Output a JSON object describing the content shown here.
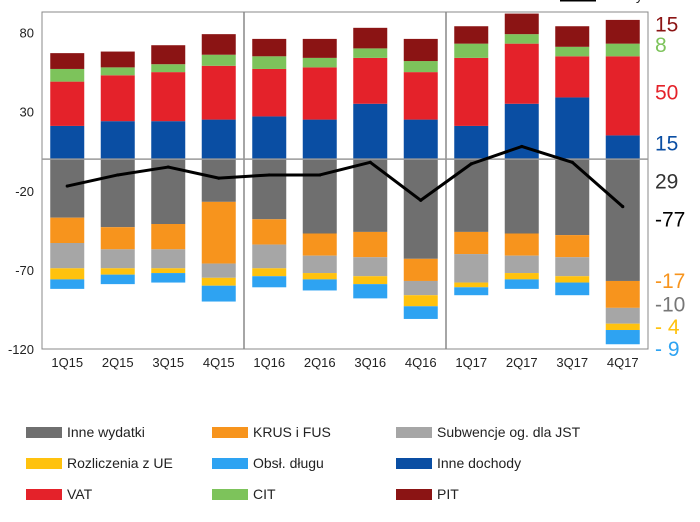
{
  "chart_data": {
    "type": "bar",
    "stacked": true,
    "categories": [
      "1Q15",
      "2Q15",
      "3Q15",
      "4Q15",
      "1Q16",
      "2Q16",
      "3Q16",
      "4Q16",
      "1Q17",
      "2Q17",
      "3Q17",
      "4Q17"
    ],
    "y_ticks": [
      "80",
      "30",
      "-20",
      "-70",
      "-120"
    ],
    "ylim": [
      -120,
      93
    ],
    "grid": false,
    "legend_position": "bottom",
    "positive_series": [
      {
        "name": "Inne dochody",
        "color": "#0a4ea3",
        "values": [
          21,
          24,
          24,
          25,
          27,
          25,
          35,
          25,
          21,
          35,
          39,
          15
        ]
      },
      {
        "name": "VAT",
        "color": "#e4222a",
        "values": [
          28,
          29,
          31,
          34,
          30,
          33,
          29,
          30,
          43,
          38,
          26,
          50
        ]
      },
      {
        "name": "CIT",
        "color": "#7dc35b",
        "values": [
          8,
          5,
          5,
          7,
          8,
          6,
          6,
          7,
          9,
          6,
          6,
          8
        ]
      },
      {
        "name": "PIT",
        "color": "#8b1414",
        "values": [
          10,
          10,
          12,
          13,
          11,
          12,
          13,
          14,
          11,
          13,
          13,
          15
        ]
      }
    ],
    "negative_series": [
      {
        "name": "Inne wydatki",
        "color": "#6f6f6f",
        "values": [
          -37,
          -43,
          -41,
          -27,
          -38,
          -47,
          -46,
          -63,
          -46,
          -47,
          -48,
          -77
        ]
      },
      {
        "name": "KRUS i FUS",
        "color": "#f7941d",
        "values": [
          -16,
          -14,
          -16,
          -39,
          -16,
          -14,
          -16,
          -14,
          -14,
          -14,
          -14,
          -17
        ]
      },
      {
        "name": "Subwencje og. dla JST",
        "color": "#a6a6a6",
        "values": [
          -16,
          -12,
          -12,
          -9,
          -15,
          -11,
          -12,
          -9,
          -18,
          -11,
          -12,
          -10
        ]
      },
      {
        "name": "Rozliczenia z UE",
        "color": "#ffc20e",
        "values": [
          -7,
          -4,
          -3,
          -5,
          -5,
          -4,
          -5,
          -7,
          -3,
          -4,
          -4,
          -4
        ]
      },
      {
        "name": "Obsł. długu",
        "color": "#2ea3f2",
        "values": [
          -6,
          -6,
          -6,
          -10,
          -7,
          -7,
          -9,
          -8,
          -5,
          -6,
          -8,
          -9
        ]
      }
    ],
    "line_series": {
      "name": "Deficyt",
      "color": "#000000",
      "values": [
        -17,
        -10,
        -5,
        -12,
        -10,
        -10,
        -2,
        -26,
        -3,
        8,
        -2,
        -30
      ]
    },
    "side_labels": [
      {
        "text": "15",
        "color": "#8b1414",
        "y": 85
      },
      {
        "text": "8",
        "color": "#7dc35b",
        "y": 72
      },
      {
        "text": "50",
        "color": "#e4222a",
        "y": 42
      },
      {
        "text": "15",
        "color": "#0a4ea3",
        "y": 10
      },
      {
        "text": "29",
        "color": "#333333",
        "y": -14
      },
      {
        "text": "-77",
        "color": "#000000",
        "y": -38
      },
      {
        "text": "-17",
        "color": "#f7941d",
        "y": -77
      },
      {
        "text": "-10",
        "color": "#777777",
        "y": -92
      },
      {
        "text": "- 4",
        "color": "#ffc20e",
        "y": -106
      },
      {
        "text": "- 9",
        "color": "#2ea3f2",
        "y": -120
      }
    ]
  },
  "legend": [
    {
      "label": "Inne wydatki",
      "color": "#6f6f6f",
      "type": "box"
    },
    {
      "label": "KRUS i FUS",
      "color": "#f7941d",
      "type": "box"
    },
    {
      "label": "Subwencje og. dla JST",
      "color": "#a6a6a6",
      "type": "box"
    },
    {
      "label": "Rozliczenia z UE",
      "color": "#ffc20e",
      "type": "box"
    },
    {
      "label": "Obsł. długu",
      "color": "#2ea3f2",
      "type": "box"
    },
    {
      "label": "Inne dochody",
      "color": "#0a4ea3",
      "type": "box"
    },
    {
      "label": "VAT",
      "color": "#e4222a",
      "type": "box"
    },
    {
      "label": "CIT",
      "color": "#7dc35b",
      "type": "box"
    },
    {
      "label": "PIT",
      "color": "#8b1414",
      "type": "box"
    },
    {
      "label": "Deficyt",
      "color": "#000000",
      "type": "line"
    }
  ]
}
